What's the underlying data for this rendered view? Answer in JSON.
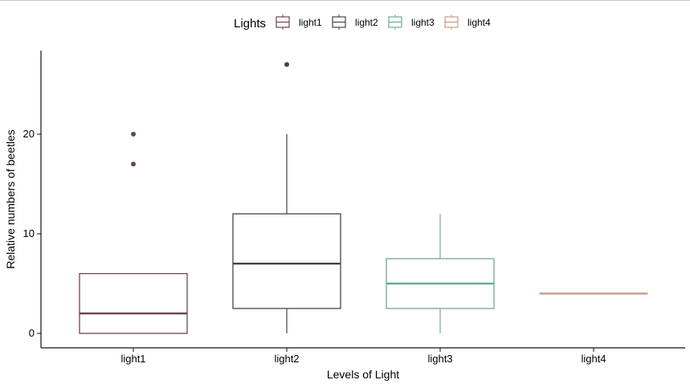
{
  "chart_data": {
    "type": "box",
    "title": "",
    "xlabel": "Levels of Light",
    "ylabel": "Relative numbers of beetles",
    "legend": {
      "title": "Lights",
      "placement": "top",
      "entries": [
        "light1",
        "light2",
        "light3",
        "light4"
      ]
    },
    "categories": [
      "light1",
      "light2",
      "light3",
      "light4"
    ],
    "series": [
      {
        "name": "light1",
        "color": "#6B4550",
        "whisker_low": 0,
        "q1": 0,
        "median": 2,
        "q3": 6,
        "whisker_high": 6,
        "outliers": [
          17,
          20
        ]
      },
      {
        "name": "light2",
        "color": "#4A433C",
        "whisker_low": 0,
        "q1": 2.5,
        "median": 7,
        "q3": 12,
        "whisker_high": 20,
        "outliers": [
          27
        ]
      },
      {
        "name": "light3",
        "color": "#6FA895",
        "whisker_low": 0,
        "q1": 2.5,
        "median": 5,
        "q3": 7.5,
        "whisker_high": 12,
        "outliers": []
      },
      {
        "name": "light4",
        "color": "#C49A86",
        "whisker_low": 4,
        "q1": 4,
        "median": 4,
        "q3": 4,
        "whisker_high": 4,
        "outliers": []
      }
    ],
    "yticks": [
      0,
      10,
      20
    ],
    "ylim": [
      -1.2,
      28.4
    ],
    "grid": false
  }
}
